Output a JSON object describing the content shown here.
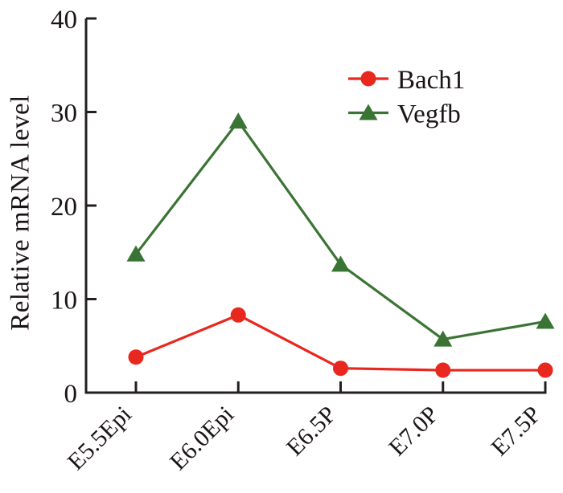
{
  "figure": {
    "background": "#ffffff",
    "axis_color": "#231f20"
  },
  "chart_data": {
    "type": "line",
    "title": "",
    "xlabel": "",
    "ylabel": "Relative mRNA level",
    "categories": [
      "E5.5Epi",
      "E6.0Epi",
      "E6.5P",
      "E7.0P",
      "E7.5P"
    ],
    "series": [
      {
        "name": "Bach1",
        "color": "#e8271e",
        "marker": "circle",
        "values": [
          3.8,
          8.3,
          2.6,
          2.4,
          2.4
        ]
      },
      {
        "name": "Vegfb",
        "color": "#3a7434",
        "marker": "triangle",
        "values": [
          14.8,
          29.0,
          13.7,
          5.7,
          7.6
        ]
      }
    ],
    "ylim": [
      0,
      40
    ],
    "yticks": [
      0,
      10,
      20,
      30,
      40
    ],
    "grid": false,
    "legend_position": "upper-right-inside"
  }
}
